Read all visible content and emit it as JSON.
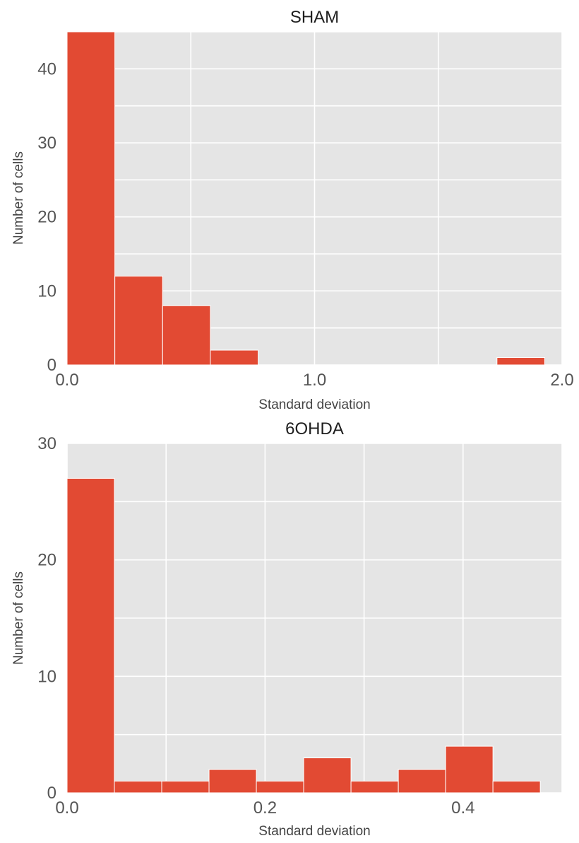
{
  "colors": {
    "bar": "#E24A33",
    "panel": "#E5E5E5",
    "grid": "#FFFFFF",
    "tick_text": "#555555"
  },
  "chart_data": [
    {
      "type": "bar",
      "title": "SHAM",
      "xlabel": "Standard deviation",
      "ylabel": "Number of cells",
      "xlim": [
        0.0,
        2.0
      ],
      "ylim": [
        0,
        45
      ],
      "xticks": [
        0.0,
        1.0,
        2.0
      ],
      "xtick_labels": [
        "0.0",
        "1.0",
        "2.0"
      ],
      "xgrid": [
        0.0,
        0.5,
        1.0,
        1.5,
        2.0
      ],
      "yticks": [
        0,
        10,
        20,
        30,
        40
      ],
      "ytick_labels": [
        "0",
        "10",
        "20",
        "30",
        "40"
      ],
      "ygrid": [
        0,
        5,
        10,
        15,
        20,
        25,
        30,
        35,
        40,
        45
      ],
      "grid": true,
      "series": [
        {
          "bins": [
            {
              "x0": 0.0,
              "x1": 0.193,
              "value": 45
            },
            {
              "x0": 0.193,
              "x1": 0.386,
              "value": 12
            },
            {
              "x0": 0.386,
              "x1": 0.579,
              "value": 8
            },
            {
              "x0": 0.579,
              "x1": 0.772,
              "value": 2
            },
            {
              "x0": 0.772,
              "x1": 0.965,
              "value": 0
            },
            {
              "x0": 0.965,
              "x1": 1.158,
              "value": 0
            },
            {
              "x0": 1.158,
              "x1": 1.351,
              "value": 0
            },
            {
              "x0": 1.351,
              "x1": 1.544,
              "value": 0
            },
            {
              "x0": 1.544,
              "x1": 1.737,
              "value": 0
            },
            {
              "x0": 1.737,
              "x1": 1.93,
              "value": 1
            }
          ]
        }
      ]
    },
    {
      "type": "bar",
      "title": "6OHDA",
      "xlabel": "Standard deviation",
      "ylabel": "Number of cells",
      "xlim": [
        0.0,
        0.5
      ],
      "ylim": [
        0,
        30
      ],
      "xticks": [
        0.0,
        0.2,
        0.4
      ],
      "xtick_labels": [
        "0.0",
        "0.2",
        "0.4"
      ],
      "xgrid": [
        0.0,
        0.1,
        0.2,
        0.3,
        0.4,
        0.5
      ],
      "yticks": [
        0,
        10,
        20,
        30
      ],
      "ytick_labels": [
        "0",
        "10",
        "20",
        "30"
      ],
      "ygrid": [
        0,
        5,
        10,
        15,
        20,
        25,
        30
      ],
      "grid": true,
      "series": [
        {
          "bins": [
            {
              "x0": 0.0,
              "x1": 0.0478,
              "value": 27
            },
            {
              "x0": 0.0478,
              "x1": 0.0956,
              "value": 1
            },
            {
              "x0": 0.0956,
              "x1": 0.1434,
              "value": 1
            },
            {
              "x0": 0.1434,
              "x1": 0.1912,
              "value": 2
            },
            {
              "x0": 0.1912,
              "x1": 0.239,
              "value": 1
            },
            {
              "x0": 0.239,
              "x1": 0.2868,
              "value": 3
            },
            {
              "x0": 0.2868,
              "x1": 0.3346,
              "value": 1
            },
            {
              "x0": 0.3346,
              "x1": 0.3824,
              "value": 2
            },
            {
              "x0": 0.3824,
              "x1": 0.4302,
              "value": 4
            },
            {
              "x0": 0.4302,
              "x1": 0.478,
              "value": 1
            }
          ]
        }
      ]
    }
  ]
}
